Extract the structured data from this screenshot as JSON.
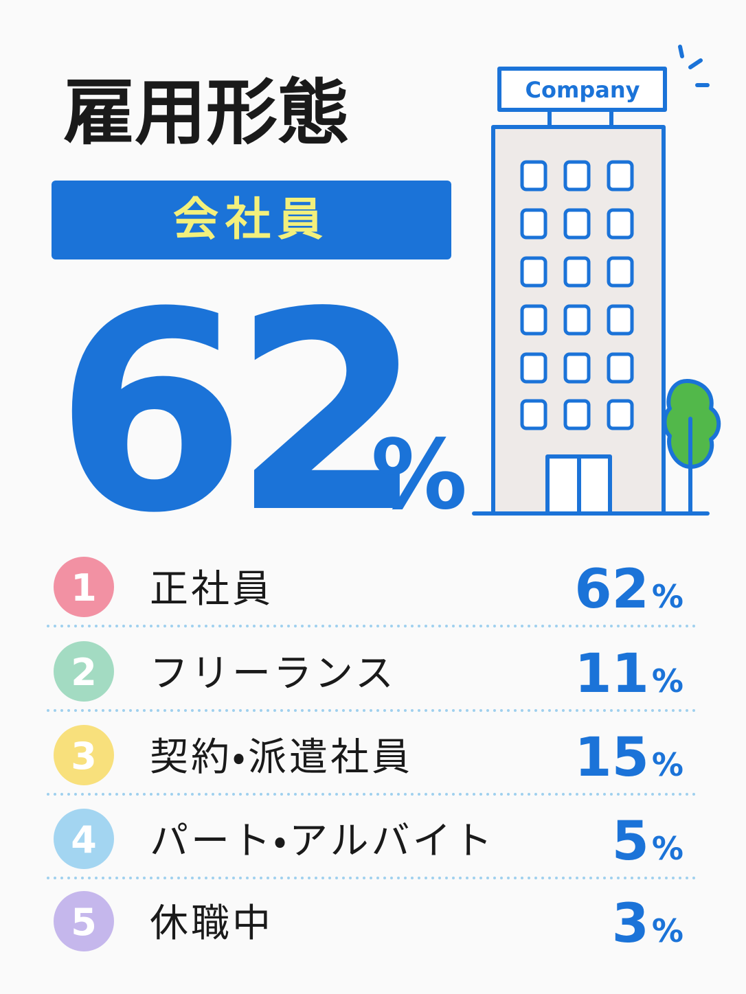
{
  "header": {
    "title": "雇用形態",
    "badge": "会社員",
    "big_value": 62,
    "big_unit": "%"
  },
  "illustration": {
    "sign": "Company"
  },
  "items": [
    {
      "rank": "1",
      "label": "正社員",
      "value": 62,
      "unit": "%",
      "color": "#f291a3"
    },
    {
      "rank": "2",
      "label": "フリーランス",
      "value": 11,
      "unit": "%",
      "color": "#a3dbc2"
    },
    {
      "rank": "3",
      "label": "契約・派遣社員",
      "value": 15,
      "unit": "%",
      "color": "#f8e07c"
    },
    {
      "rank": "4",
      "label": "パート・アルバイト",
      "value": 5,
      "unit": "%",
      "color": "#a3d5f1"
    },
    {
      "rank": "5",
      "label": "休職中",
      "value": 3,
      "unit": "%",
      "color": "#c5b7ec"
    }
  ]
}
